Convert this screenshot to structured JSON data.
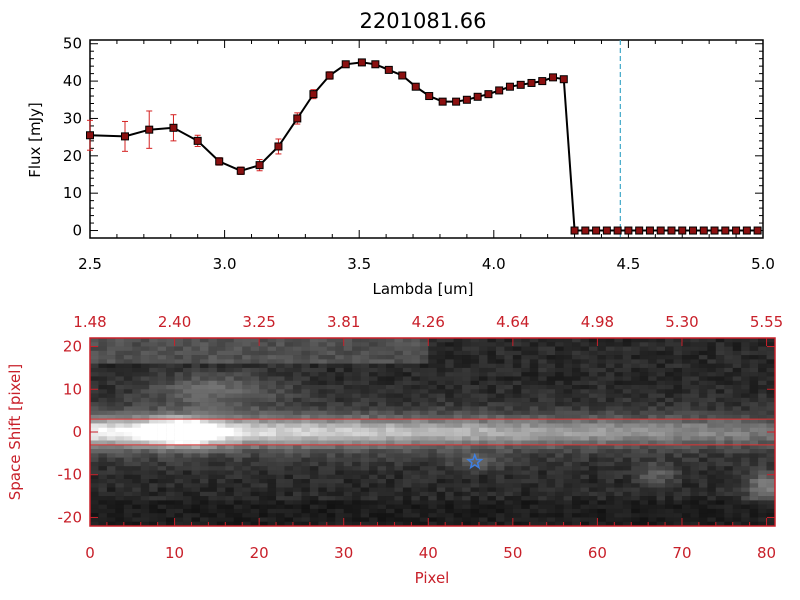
{
  "chart_data": [
    {
      "type": "line",
      "title": "2201081.66",
      "xlabel": "Lambda [um]",
      "ylabel": "Flux [mJy]",
      "xlim": [
        2.5,
        5.0
      ],
      "ylim": [
        -2,
        51
      ],
      "xticks": [
        "2.5",
        "3.0",
        "3.5",
        "4.0",
        "4.5",
        "5.0"
      ],
      "yticks": [
        "0",
        "10",
        "20",
        "30",
        "40",
        "50"
      ],
      "grid": false,
      "colors": {
        "line": "#000000",
        "marker": "#8b1010",
        "errorbar": "#d42020",
        "vline": "#3fa8c8",
        "baseline": "#d42020"
      },
      "vline_x": 4.47,
      "series": [
        {
          "x": [
            2.5,
            2.63,
            2.72,
            2.81,
            2.9,
            2.98,
            3.06,
            3.13,
            3.2,
            3.27,
            3.33,
            3.39,
            3.45,
            3.51,
            3.56,
            3.61,
            3.66,
            3.71,
            3.76,
            3.81,
            3.86,
            3.9,
            3.94,
            3.98,
            4.02,
            4.06,
            4.1,
            4.14,
            4.18,
            4.22,
            4.26,
            4.3,
            4.34,
            4.38,
            4.42,
            4.46,
            4.5,
            4.54,
            4.58,
            4.62,
            4.66,
            4.7,
            4.74,
            4.78,
            4.82,
            4.86,
            4.9,
            4.94,
            4.98
          ],
          "values": [
            25.5,
            25.2,
            27.0,
            27.5,
            24.0,
            18.5,
            16.0,
            17.5,
            22.5,
            30.0,
            36.5,
            41.5,
            44.5,
            45.0,
            44.5,
            43.0,
            41.5,
            38.5,
            36.0,
            34.5,
            34.5,
            35.0,
            35.8,
            36.5,
            37.5,
            38.5,
            39.0,
            39.5,
            40.0,
            41.0,
            40.5,
            0,
            0,
            0,
            0,
            0,
            0,
            0,
            0,
            0,
            0,
            0,
            0,
            0,
            0,
            0,
            0,
            0,
            0
          ],
          "errors": [
            4.0,
            4.0,
            5.0,
            3.5,
            1.5,
            1.0,
            1.0,
            1.5,
            2.0,
            1.5,
            1.2,
            1.0,
            0.8,
            0.8,
            0.8,
            0.8,
            0.8,
            0.8,
            0.8,
            0.8,
            0.8,
            0.8,
            0.8,
            0.8,
            0.8,
            0.8,
            0.8,
            0.8,
            0.8,
            0.8,
            0.8,
            0,
            0,
            0,
            0,
            0,
            0,
            0,
            0,
            0,
            0,
            0,
            0,
            0,
            0,
            0,
            0,
            0,
            0
          ]
        }
      ]
    },
    {
      "type": "heatmap",
      "xlabel": "Pixel",
      "ylabel": "Space Shift [pixel]",
      "xlim": [
        0,
        81
      ],
      "ylim": [
        -22,
        22
      ],
      "xticks": [
        "0",
        "10",
        "20",
        "30",
        "40",
        "50",
        "60",
        "70",
        "80"
      ],
      "yticks": [
        "-20",
        "-10",
        "0",
        "10",
        "20"
      ],
      "top_axis_ticks": [
        "1.48",
        "2.40",
        "3.25",
        "3.81",
        "4.26",
        "4.64",
        "4.98",
        "5.30",
        "5.55"
      ],
      "aperture_lines_y": [
        3,
        -3
      ],
      "source_marker": {
        "type": "star",
        "x": 45.5,
        "y": -7,
        "color": "#3f7fe0"
      },
      "colormap": "grayscale",
      "colors": {
        "axis": "#c8202a",
        "aperture": "#e03030",
        "background": "#000000"
      }
    }
  ]
}
